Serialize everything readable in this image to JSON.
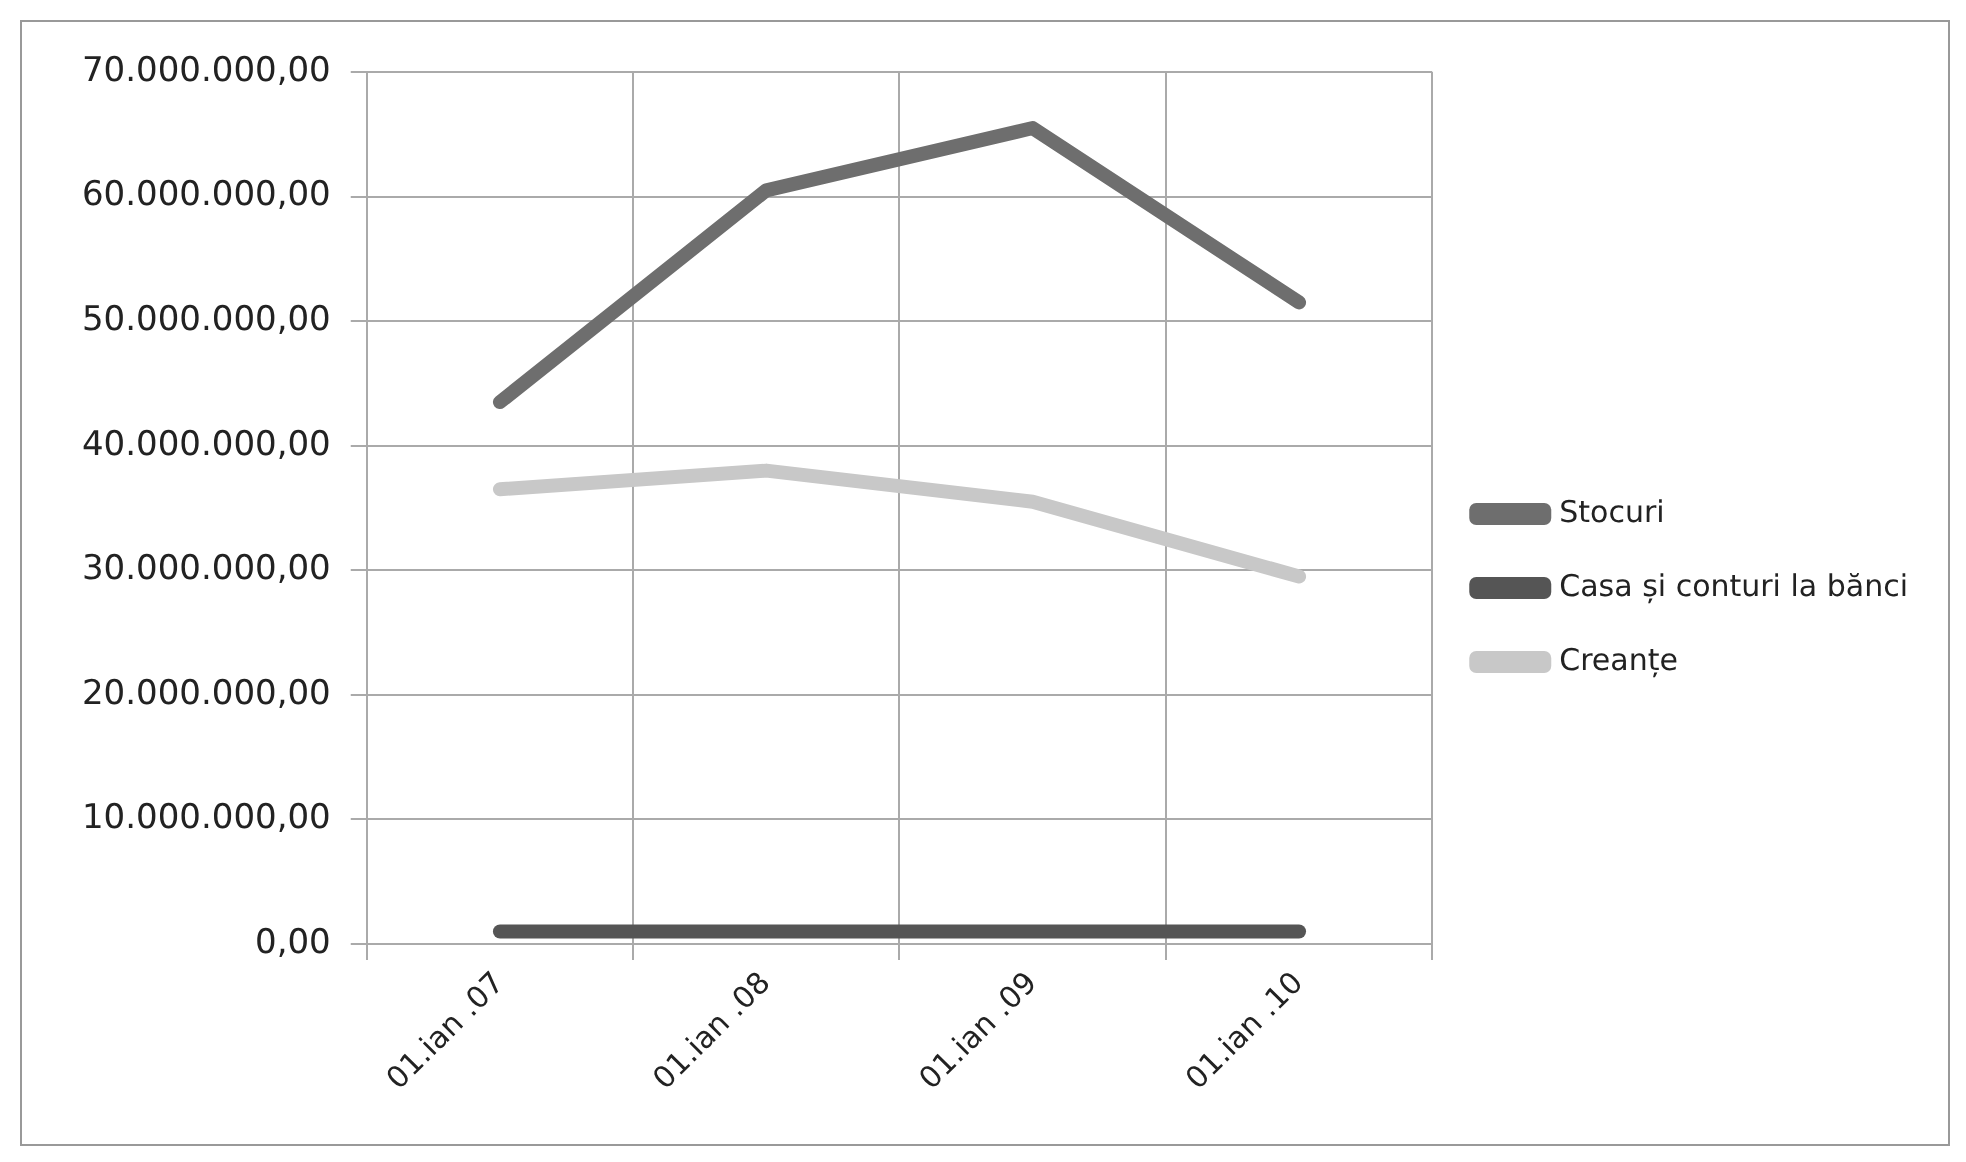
{
  "chart_data": {
    "type": "line",
    "categories": [
      "01.ian .07",
      "01.ian .08",
      "01.ian .09",
      "01.ian .10"
    ],
    "series": [
      {
        "name": "Stocuri",
        "color": "#6e6e6e",
        "values": [
          43500000,
          60500000,
          65500000,
          51500000
        ]
      },
      {
        "name": "Casa și conturi la bănci",
        "color": "#555555",
        "values": [
          1000000,
          1000000,
          1000000,
          1000000
        ]
      },
      {
        "name": "Creanțe",
        "color": "#c8c8c8",
        "values": [
          36500000,
          38000000,
          35500000,
          29500000
        ]
      }
    ],
    "ylim": [
      0,
      70000000
    ],
    "yticks": [
      {
        "value": 0,
        "label": "0,00"
      },
      {
        "value": 10000000,
        "label": "10.000.000,00"
      },
      {
        "value": 20000000,
        "label": "20.000.000,00"
      },
      {
        "value": 30000000,
        "label": "30.000.000,00"
      },
      {
        "value": 40000000,
        "label": "40.000.000,00"
      },
      {
        "value": 50000000,
        "label": "50.000.000,00"
      },
      {
        "value": 60000000,
        "label": "60.000.000,00"
      },
      {
        "value": 70000000,
        "label": "70.000.000,00"
      }
    ],
    "grid": true,
    "legend": "right",
    "marker": "none",
    "line_style": "solid"
  }
}
